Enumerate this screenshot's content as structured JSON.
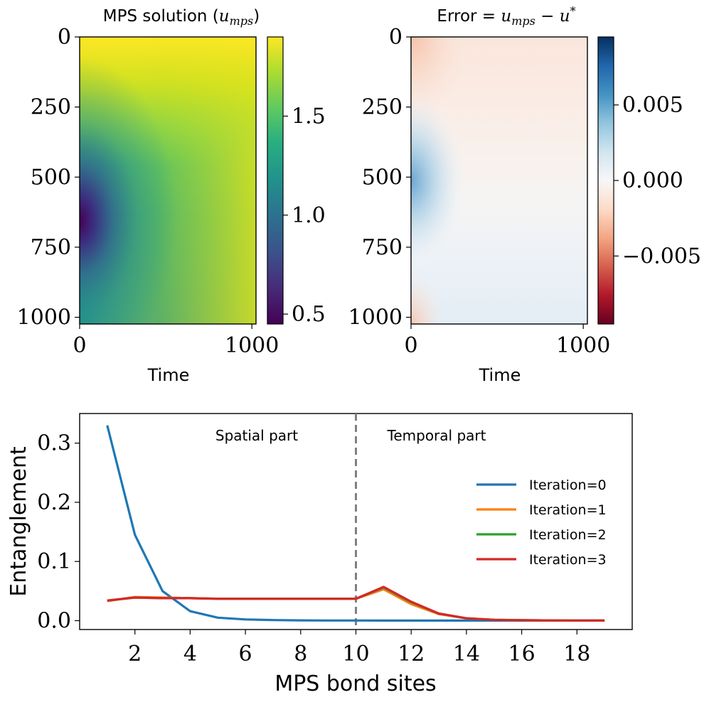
{
  "chart_data": [
    {
      "type": "heatmap",
      "title_prefix": "MPS solution (",
      "title_var": "u",
      "title_sub": "mps",
      "title_suffix": ")",
      "xlabel": "Time",
      "ylabel": "",
      "xlim": [
        0,
        1024
      ],
      "ylim": [
        1024,
        0
      ],
      "x_ticks": [
        0,
        1000
      ],
      "y_ticks": [
        0,
        250,
        500,
        750,
        1000
      ],
      "colormap": "viridis",
      "colorbar": {
        "range": [
          0.45,
          1.9
        ],
        "ticks": [
          0.5,
          1.0,
          1.5
        ],
        "tick_labels": [
          "0.5",
          "1.0",
          "1.5"
        ]
      }
    },
    {
      "type": "heatmap",
      "title_prefix": "Error = ",
      "title_var": "u",
      "title_sub": "mps",
      "title_rest": " − u",
      "title_sup": "*",
      "xlabel": "Time",
      "ylabel": "",
      "xlim": [
        0,
        1024
      ],
      "ylim": [
        1024,
        0
      ],
      "x_ticks": [
        0,
        1000
      ],
      "y_ticks": [
        0,
        250,
        500,
        750,
        1000
      ],
      "colormap": "RdBu",
      "colorbar": {
        "range": [
          -0.0095,
          0.0095
        ],
        "ticks": [
          0.005,
          0.0,
          -0.005
        ],
        "tick_labels": [
          "0.005",
          "0.000",
          "−0.005"
        ]
      }
    },
    {
      "type": "line",
      "xlabel": "MPS bond sites",
      "ylabel": "Entanglement",
      "xlim": [
        0,
        20
      ],
      "ylim": [
        -0.015,
        0.35
      ],
      "x_ticks": [
        2,
        4,
        6,
        8,
        10,
        12,
        14,
        16,
        18
      ],
      "y_ticks": [
        0.0,
        0.1,
        0.2,
        0.3
      ],
      "y_tick_labels": [
        "0.0",
        "0.1",
        "0.2",
        "0.3"
      ],
      "divider_x": 10,
      "annotations": [
        "Spatial part",
        "Temporal part"
      ],
      "legend_position": "center-right",
      "x": [
        1,
        2,
        3,
        4,
        5,
        6,
        7,
        8,
        9,
        10,
        11,
        12,
        13,
        14,
        15,
        16,
        17,
        18,
        19
      ],
      "series": [
        {
          "name": "Iteration=0",
          "color": "#1f77b4",
          "values": [
            0.33,
            0.145,
            0.05,
            0.016,
            0.005,
            0.002,
            0.001,
            0.0005,
            0.0003,
            0.0002,
            0.0001,
            0.0001,
            0.0001,
            0.0001,
            0.0001,
            0.0001,
            0.0001,
            0.0001,
            0.0001
          ]
        },
        {
          "name": "Iteration=1",
          "color": "#ff7f0e",
          "values": [
            0.033,
            0.04,
            0.039,
            0.038,
            0.037,
            0.037,
            0.037,
            0.037,
            0.037,
            0.037,
            0.053,
            0.028,
            0.011,
            0.004,
            0.0015,
            0.0007,
            0.0004,
            0.0003,
            0.0002
          ]
        },
        {
          "name": "Iteration=2",
          "color": "#2ca02c",
          "values": [
            0.034,
            0.039,
            0.038,
            0.038,
            0.037,
            0.037,
            0.037,
            0.037,
            0.037,
            0.037,
            0.056,
            0.031,
            0.012,
            0.004,
            0.0015,
            0.0007,
            0.0004,
            0.0003,
            0.0002
          ]
        },
        {
          "name": "Iteration=3",
          "color": "#d62728",
          "values": [
            0.034,
            0.039,
            0.038,
            0.038,
            0.037,
            0.037,
            0.037,
            0.037,
            0.037,
            0.037,
            0.057,
            0.032,
            0.012,
            0.004,
            0.0015,
            0.0007,
            0.0004,
            0.0003,
            0.0002
          ]
        }
      ]
    }
  ]
}
